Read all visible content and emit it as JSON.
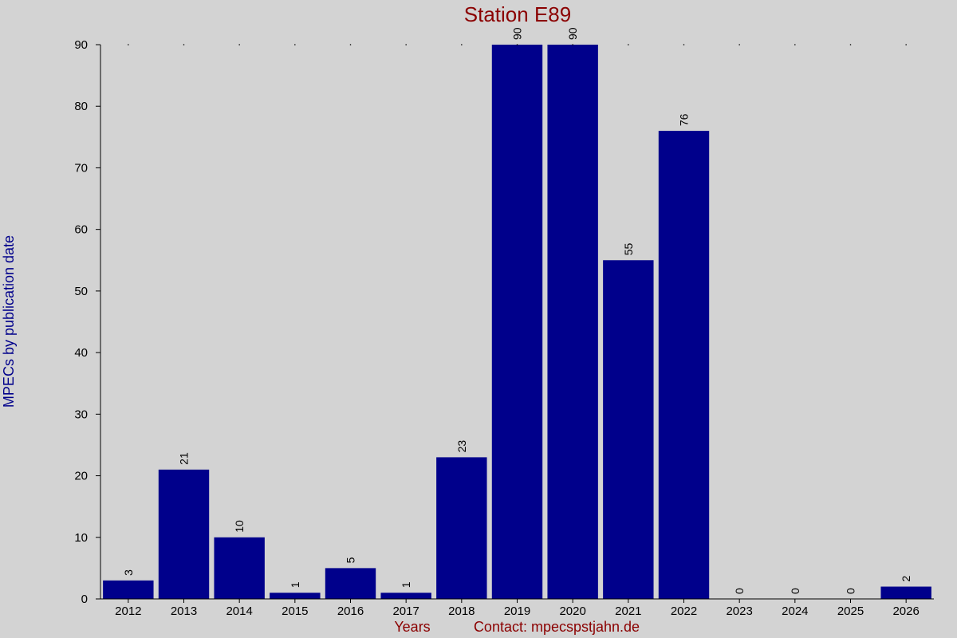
{
  "chart_data": {
    "type": "bar",
    "title": "Station E89",
    "ylabel": "MPECs by publication date",
    "xlabel": "Years",
    "contact": "Contact: mpecspstjahn.de",
    "categories": [
      "2012",
      "2013",
      "2014",
      "2015",
      "2016",
      "2017",
      "2018",
      "2019",
      "2020",
      "2021",
      "2022",
      "2023",
      "2024",
      "2025",
      "2026"
    ],
    "values": [
      3,
      21,
      10,
      1,
      5,
      1,
      23,
      90,
      90,
      55,
      76,
      0,
      0,
      0,
      2
    ],
    "value_labels": [
      "3",
      "21",
      "10",
      "1",
      "5",
      "1",
      "23",
      "90",
      "90",
      "55",
      "76",
      "0",
      "0",
      "0",
      "2"
    ],
    "yticks": [
      "0",
      "10",
      "20",
      "30",
      "40",
      "50",
      "60",
      "70",
      "80",
      "90"
    ],
    "ylim": [
      0,
      90
    ],
    "grid": false,
    "bar_color": "#00008b"
  }
}
